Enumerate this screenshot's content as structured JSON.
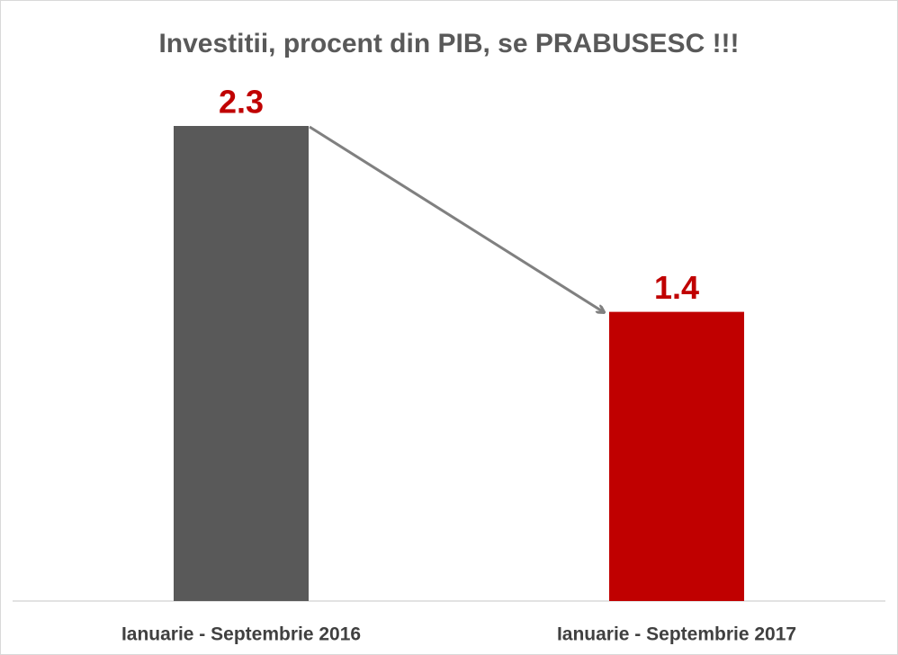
{
  "chart_data": {
    "type": "bar",
    "title": "Investitii, procent din PIB, se PRABUSESC !!!",
    "categories": [
      "Ianuarie - Septembrie 2016",
      "Ianuarie - Septembrie 2017"
    ],
    "values": [
      2.3,
      1.4
    ],
    "colors": [
      "#595959",
      "#c00000"
    ],
    "label_color": "#c00000",
    "ylim": [
      0,
      2.3
    ]
  }
}
